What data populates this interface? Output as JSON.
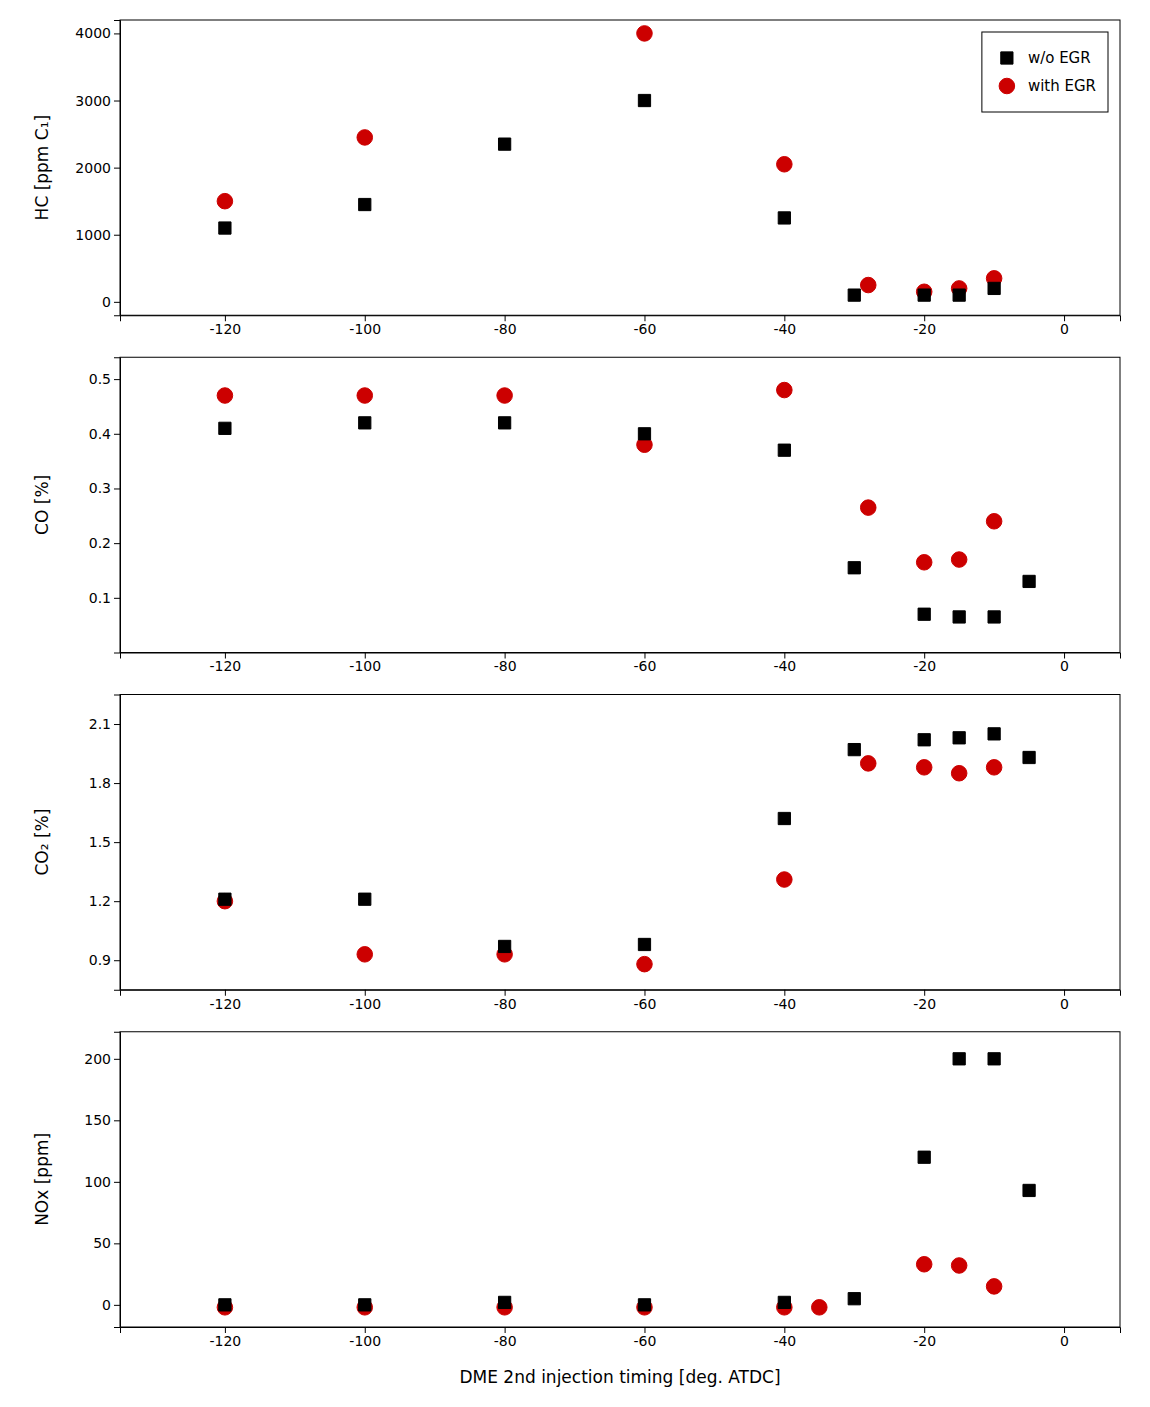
{
  "chart_data": [
    {
      "type": "scatter",
      "ylabel": "HC [ppm C₁]",
      "legend": "upper right",
      "grid": false,
      "xlim": [
        -135,
        8
      ],
      "xticks": [
        -120,
        -100,
        -80,
        -60,
        -40,
        -20,
        0
      ],
      "ylim": [
        -200,
        4200
      ],
      "yticks": [
        0,
        1000,
        2000,
        3000,
        4000
      ],
      "series": [
        {
          "name": "w/o EGR",
          "color": "#000000",
          "marker": "square",
          "x": [
            -120,
            -100,
            -80,
            -60,
            -40,
            -30,
            -20,
            -15,
            -10
          ],
          "values": [
            1100,
            1450,
            2350,
            3000,
            1250,
            100,
            100,
            100,
            200
          ]
        },
        {
          "name": "with EGR",
          "color": "#cc0000",
          "marker": "circle",
          "x": [
            -120,
            -100,
            -60,
            -40,
            -28,
            -20,
            -15,
            -10
          ],
          "values": [
            1500,
            2450,
            4000,
            2050,
            250,
            150,
            200,
            350
          ]
        }
      ]
    },
    {
      "type": "scatter",
      "ylabel": "CO [%]",
      "grid": false,
      "xlim": [
        -135,
        8
      ],
      "xticks": [
        -120,
        -100,
        -80,
        -60,
        -40,
        -20,
        0
      ],
      "ylim": [
        0.0,
        0.54
      ],
      "yticks": [
        0.1,
        0.2,
        0.3,
        0.4,
        0.5
      ],
      "series": [
        {
          "color": "#000000",
          "marker": "square",
          "x": [
            -120,
            -100,
            -80,
            -60,
            -40,
            -30,
            -20,
            -15,
            -10,
            -5
          ],
          "values": [
            0.41,
            0.42,
            0.42,
            0.4,
            0.37,
            0.155,
            0.07,
            0.065,
            0.065,
            0.13
          ]
        },
        {
          "color": "#cc0000",
          "marker": "circle",
          "x": [
            -120,
            -100,
            -80,
            -60,
            -40,
            -28,
            -20,
            -15,
            -10
          ],
          "values": [
            0.47,
            0.47,
            0.47,
            0.38,
            0.48,
            0.265,
            0.165,
            0.17,
            0.24
          ]
        }
      ]
    },
    {
      "type": "scatter",
      "ylabel": "CO₂ [%]",
      "grid": false,
      "xlim": [
        -135,
        8
      ],
      "xticks": [
        -120,
        -100,
        -80,
        -60,
        -40,
        -20,
        0
      ],
      "ylim": [
        0.75,
        2.25
      ],
      "yticks": [
        0.9,
        1.2,
        1.5,
        1.8,
        2.1
      ],
      "series": [
        {
          "color": "#000000",
          "marker": "square",
          "x": [
            -120,
            -100,
            -80,
            -60,
            -40,
            -30,
            -20,
            -15,
            -10,
            -5
          ],
          "values": [
            1.21,
            1.21,
            0.97,
            0.98,
            1.62,
            1.97,
            2.02,
            2.03,
            2.05,
            1.93
          ]
        },
        {
          "color": "#cc0000",
          "marker": "circle",
          "x": [
            -120,
            -100,
            -80,
            -60,
            -40,
            -28,
            -20,
            -15,
            -10
          ],
          "values": [
            1.2,
            0.93,
            0.93,
            0.88,
            1.31,
            1.9,
            1.88,
            1.85,
            1.88
          ]
        }
      ]
    },
    {
      "type": "scatter",
      "ylabel": "NOx [ppm]",
      "xlabel": "DME 2nd injection timing [deg. ATDC]",
      "grid": false,
      "xlim": [
        -135,
        8
      ],
      "xticks": [
        -120,
        -100,
        -80,
        -60,
        -40,
        -20,
        0
      ],
      "ylim": [
        -18,
        222
      ],
      "yticks": [
        0,
        50,
        100,
        150,
        200
      ],
      "series": [
        {
          "color": "#000000",
          "marker": "square",
          "x": [
            -120,
            -100,
            -80,
            -60,
            -40,
            -30,
            -20,
            -15,
            -10,
            -5
          ],
          "values": [
            0,
            0,
            2,
            0,
            2,
            5,
            120,
            200,
            200,
            93
          ]
        },
        {
          "color": "#cc0000",
          "marker": "circle",
          "x": [
            -120,
            -100,
            -80,
            -60,
            -40,
            -35,
            -20,
            -15,
            -10
          ],
          "values": [
            -2,
            -2,
            -2,
            -2,
            -2,
            -2,
            33,
            32,
            15
          ]
        }
      ]
    }
  ]
}
